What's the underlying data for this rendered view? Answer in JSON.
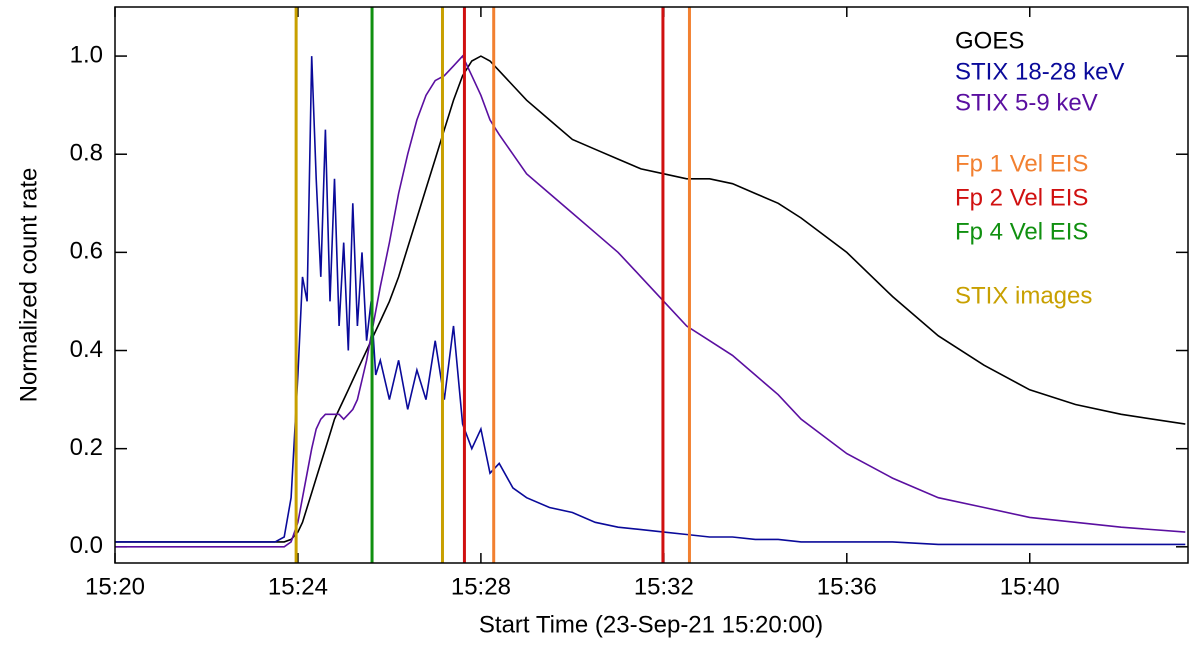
{
  "chart_data": {
    "type": "line",
    "xlabel": "Start Time (23-Sep-21 15:20:00)",
    "ylabel": "Normalized count rate",
    "x": [
      0,
      2,
      3.5,
      3.7,
      3.85,
      4.0,
      4.1,
      4.2,
      4.3,
      4.4,
      4.5,
      4.6,
      4.7,
      4.8,
      4.9,
      5.0,
      5.1,
      5.2,
      5.3,
      5.4,
      5.5,
      5.6,
      5.7,
      5.8,
      6.0,
      6.2,
      6.4,
      6.6,
      6.8,
      7.0,
      7.2,
      7.4,
      7.6,
      7.8,
      8.0,
      8.2,
      8.4,
      8.7,
      9.0,
      9.5,
      10,
      10.5,
      11,
      11.5,
      12,
      12.5,
      13,
      13.5,
      14,
      14.5,
      15,
      16,
      17,
      18,
      19,
      20,
      21,
      22,
      23.4
    ],
    "series": [
      {
        "name": "GOES",
        "color": "#000000",
        "values": [
          0.01,
          0.01,
          0.01,
          0.01,
          0.015,
          0.03,
          0.05,
          0.08,
          0.11,
          0.14,
          0.17,
          0.2,
          0.23,
          0.26,
          0.28,
          0.3,
          0.32,
          0.34,
          0.36,
          0.38,
          0.4,
          0.42,
          0.44,
          0.46,
          0.5,
          0.55,
          0.61,
          0.67,
          0.73,
          0.79,
          0.85,
          0.91,
          0.96,
          0.99,
          1.0,
          0.99,
          0.97,
          0.94,
          0.91,
          0.87,
          0.83,
          0.81,
          0.79,
          0.77,
          0.76,
          0.75,
          0.75,
          0.74,
          0.72,
          0.7,
          0.67,
          0.6,
          0.51,
          0.43,
          0.37,
          0.32,
          0.29,
          0.27,
          0.25
        ]
      },
      {
        "name": "STIX 18-28 keV",
        "color": "#0a0a9a",
        "values": [
          0.01,
          0.01,
          0.01,
          0.02,
          0.1,
          0.35,
          0.55,
          0.5,
          1.0,
          0.75,
          0.55,
          0.85,
          0.5,
          0.75,
          0.45,
          0.62,
          0.4,
          0.7,
          0.45,
          0.6,
          0.42,
          0.5,
          0.35,
          0.38,
          0.3,
          0.38,
          0.28,
          0.36,
          0.3,
          0.42,
          0.3,
          0.45,
          0.25,
          0.2,
          0.24,
          0.15,
          0.17,
          0.12,
          0.1,
          0.08,
          0.07,
          0.05,
          0.04,
          0.035,
          0.03,
          0.025,
          0.02,
          0.02,
          0.015,
          0.015,
          0.01,
          0.01,
          0.01,
          0.005,
          0.005,
          0.005,
          0.005,
          0.005,
          0.005
        ]
      },
      {
        "name": "STIX 5-9 keV",
        "color": "#5a0fa0",
        "values": [
          0,
          0,
          0,
          0,
          0.01,
          0.05,
          0.1,
          0.15,
          0.2,
          0.24,
          0.26,
          0.27,
          0.27,
          0.27,
          0.27,
          0.26,
          0.27,
          0.28,
          0.3,
          0.34,
          0.38,
          0.43,
          0.48,
          0.53,
          0.62,
          0.72,
          0.8,
          0.87,
          0.92,
          0.95,
          0.96,
          0.98,
          1.0,
          0.96,
          0.92,
          0.87,
          0.84,
          0.8,
          0.76,
          0.72,
          0.68,
          0.64,
          0.6,
          0.55,
          0.5,
          0.45,
          0.42,
          0.39,
          0.35,
          0.31,
          0.26,
          0.19,
          0.14,
          0.1,
          0.08,
          0.06,
          0.05,
          0.04,
          0.03
        ]
      }
    ],
    "vlines": [
      {
        "name": "Fp 1 Vel EIS",
        "color": "#f28030",
        "x": [
          8.28,
          12.56
        ]
      },
      {
        "name": "Fp 2 Vel EIS",
        "color": "#d01010",
        "x": [
          7.64,
          11.98
        ]
      },
      {
        "name": "Fp 4 Vel EIS",
        "color": "#109010",
        "x": [
          5.62
        ]
      },
      {
        "name": "STIX images",
        "color": "#c8a000",
        "x": [
          3.96,
          7.16
        ]
      }
    ],
    "xlim": [
      0,
      23.46
    ],
    "xticks": [
      {
        "value": 0,
        "label": "15:20"
      },
      {
        "value": 4,
        "label": "15:24"
      },
      {
        "value": 8,
        "label": "15:28"
      },
      {
        "value": 12,
        "label": "15:32"
      },
      {
        "value": 16,
        "label": "15:36"
      },
      {
        "value": 20,
        "label": "15:40"
      }
    ],
    "ylim": [
      -0.033,
      1.1
    ],
    "yticks": [
      {
        "value": 0,
        "label": "0.0"
      },
      {
        "value": 0.2,
        "label": "0.2"
      },
      {
        "value": 0.4,
        "label": "0.4"
      },
      {
        "value": 0.6,
        "label": "0.6"
      },
      {
        "value": 0.8,
        "label": "0.8"
      },
      {
        "value": 1.0,
        "label": "1.0"
      }
    ],
    "legend": "upper right"
  }
}
